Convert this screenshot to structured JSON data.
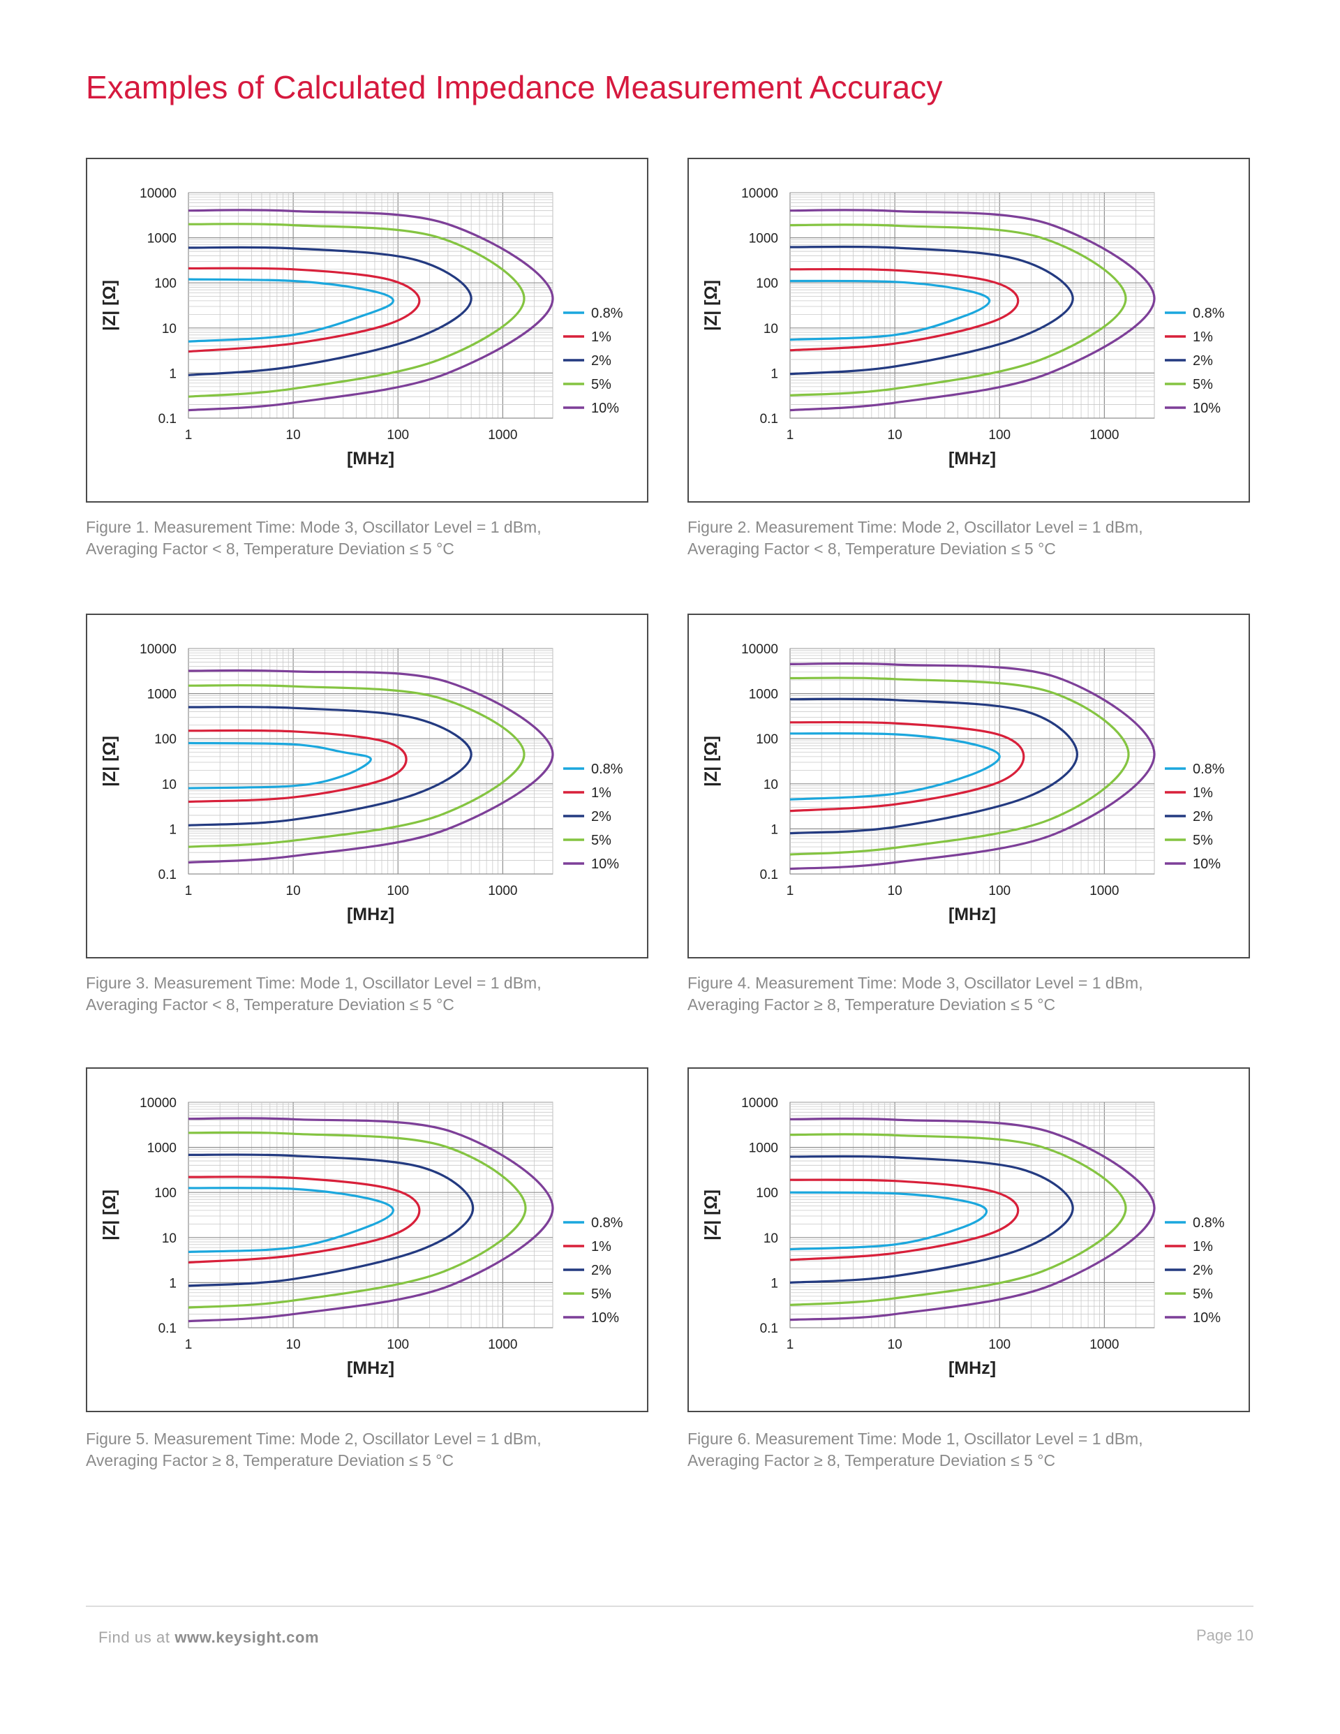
{
  "page_title": "Examples of Calculated Impedance Measurement Accuracy",
  "footer": {
    "find_us": "Find us at",
    "url": "www.keysight.com",
    "page": "Page 10"
  },
  "colors": {
    "title": "#d6193e",
    "0.8%": "#1ba7dd",
    "1%": "#d8203a",
    "2%": "#233a80",
    "5%": "#84c441",
    "10%": "#7d3f98"
  },
  "chart_data": [
    {
      "type": "line",
      "xlabel": "[MHz]",
      "ylabel": "|Z| [Ω]",
      "x_scale": "log",
      "y_scale": "log",
      "xlim": [
        1,
        3000
      ],
      "ylim": [
        0.1,
        10000
      ],
      "xticks": [
        "1",
        "10",
        "100",
        "1000"
      ],
      "yticks": [
        "10000",
        "1000",
        "100",
        "10",
        "1",
        "0.1"
      ],
      "grid": true,
      "legend": "right",
      "series": [
        {
          "name": "0.8%",
          "x": [
            1,
            10,
            50,
            90,
            50,
            10,
            1
          ],
          "y": [
            120,
            110,
            70,
            40,
            20,
            7,
            5
          ]
        },
        {
          "name": "1%",
          "x": [
            1,
            10,
            80,
            160,
            80,
            10,
            1
          ],
          "y": [
            210,
            200,
            120,
            40,
            12,
            4.5,
            3
          ]
        },
        {
          "name": "2%",
          "x": [
            1,
            10,
            150,
            500,
            150,
            10,
            1
          ],
          "y": [
            600,
            580,
            320,
            45,
            6,
            1.4,
            0.9
          ]
        },
        {
          "name": "5%",
          "x": [
            1,
            10,
            250,
            1600,
            250,
            10,
            1
          ],
          "y": [
            2000,
            1900,
            1000,
            45,
            2,
            0.45,
            0.3
          ]
        },
        {
          "name": "10%",
          "x": [
            1,
            10,
            300,
            3000,
            300,
            10,
            1
          ],
          "y": [
            4000,
            3900,
            2000,
            45,
            1,
            0.22,
            0.15
          ]
        }
      ],
      "caption": [
        "Figure 1. Measurement Time: Mode 3, Oscillator Level = 1 dBm,",
        "Averaging Factor < 8, Temperature Deviation ≤ 5 °C"
      ]
    },
    {
      "type": "line",
      "xlabel": "[MHz]",
      "ylabel": "|Z| [Ω]",
      "x_scale": "log",
      "y_scale": "log",
      "xlim": [
        1,
        3000
      ],
      "ylim": [
        0.1,
        10000
      ],
      "xticks": [
        "1",
        "10",
        "100",
        "1000"
      ],
      "yticks": [
        "10000",
        "1000",
        "100",
        "10",
        "1",
        "0.1"
      ],
      "grid": true,
      "legend": "right",
      "series": [
        {
          "name": "0.8%",
          "x": [
            1,
            10,
            45,
            80,
            45,
            10,
            1
          ],
          "y": [
            110,
            105,
            70,
            40,
            18,
            7,
            5.5
          ]
        },
        {
          "name": "1%",
          "x": [
            1,
            10,
            80,
            150,
            80,
            10,
            1
          ],
          "y": [
            200,
            190,
            110,
            40,
            13,
            4.5,
            3.2
          ]
        },
        {
          "name": "2%",
          "x": [
            1,
            10,
            150,
            500,
            150,
            10,
            1
          ],
          "y": [
            620,
            600,
            330,
            45,
            6,
            1.4,
            0.95
          ]
        },
        {
          "name": "5%",
          "x": [
            1,
            10,
            250,
            1600,
            250,
            10,
            1
          ],
          "y": [
            1900,
            1850,
            1000,
            45,
            2,
            0.45,
            0.32
          ]
        },
        {
          "name": "10%",
          "x": [
            1,
            10,
            300,
            3000,
            300,
            10,
            1
          ],
          "y": [
            4000,
            3900,
            2000,
            45,
            1,
            0.22,
            0.15
          ]
        }
      ],
      "caption": [
        "Figure 2. Measurement Time: Mode 2, Oscillator Level = 1 dBm,",
        "Averaging Factor < 8, Temperature Deviation ≤ 5 °C"
      ]
    },
    {
      "type": "line",
      "xlabel": "[MHz]",
      "ylabel": "|Z| [Ω]",
      "x_scale": "log",
      "y_scale": "log",
      "xlim": [
        1,
        3000
      ],
      "ylim": [
        0.1,
        10000
      ],
      "xticks": [
        "1",
        "10",
        "100",
        "1000"
      ],
      "yticks": [
        "10000",
        "1000",
        "100",
        "10",
        "1",
        "0.1"
      ],
      "grid": true,
      "legend": "right",
      "series": [
        {
          "name": "0.8%",
          "x": [
            1,
            10,
            30,
            55,
            30,
            10,
            1
          ],
          "y": [
            80,
            75,
            50,
            35,
            15,
            9,
            8
          ]
        },
        {
          "name": "1%",
          "x": [
            1,
            10,
            70,
            120,
            70,
            10,
            1
          ],
          "y": [
            150,
            145,
            90,
            35,
            12,
            5,
            4
          ]
        },
        {
          "name": "2%",
          "x": [
            1,
            10,
            150,
            500,
            150,
            10,
            1
          ],
          "y": [
            500,
            480,
            280,
            45,
            6,
            1.6,
            1.2
          ]
        },
        {
          "name": "5%",
          "x": [
            1,
            10,
            250,
            1600,
            250,
            10,
            1
          ],
          "y": [
            1500,
            1450,
            800,
            45,
            2,
            0.55,
            0.4
          ]
        },
        {
          "name": "10%",
          "x": [
            1,
            10,
            300,
            3000,
            300,
            10,
            1
          ],
          "y": [
            3200,
            3100,
            1800,
            45,
            1,
            0.25,
            0.18
          ]
        }
      ],
      "caption": [
        "Figure 3. Measurement Time: Mode 1, Oscillator Level = 1 dBm,",
        "Averaging Factor < 8, Temperature Deviation ≤ 5 °C"
      ]
    },
    {
      "type": "line",
      "xlabel": "[MHz]",
      "ylabel": "|Z| [Ω]",
      "x_scale": "log",
      "y_scale": "log",
      "xlim": [
        1,
        3000
      ],
      "ylim": [
        0.1,
        10000
      ],
      "xticks": [
        "1",
        "10",
        "100",
        "1000"
      ],
      "yticks": [
        "10000",
        "1000",
        "100",
        "10",
        "1",
        "0.1"
      ],
      "grid": true,
      "legend": "right",
      "series": [
        {
          "name": "0.8%",
          "x": [
            1,
            10,
            50,
            100,
            50,
            10,
            1
          ],
          "y": [
            130,
            125,
            80,
            40,
            15,
            6,
            4.5
          ]
        },
        {
          "name": "1%",
          "x": [
            1,
            10,
            90,
            170,
            90,
            10,
            1
          ],
          "y": [
            230,
            220,
            130,
            40,
            10,
            3.5,
            2.5
          ]
        },
        {
          "name": "2%",
          "x": [
            1,
            10,
            180,
            550,
            180,
            10,
            1
          ],
          "y": [
            750,
            720,
            400,
            45,
            5,
            1.1,
            0.8
          ]
        },
        {
          "name": "5%",
          "x": [
            1,
            10,
            300,
            1700,
            300,
            10,
            1
          ],
          "y": [
            2200,
            2100,
            1100,
            45,
            1.6,
            0.38,
            0.27
          ]
        },
        {
          "name": "10%",
          "x": [
            1,
            10,
            350,
            3000,
            350,
            10,
            1
          ],
          "y": [
            4500,
            4400,
            2300,
            45,
            0.8,
            0.18,
            0.13
          ]
        }
      ],
      "caption": [
        "Figure 4. Measurement Time: Mode 3, Oscillator Level = 1 dBm,",
        "Averaging Factor ≥ 8, Temperature Deviation ≤ 5 °C"
      ]
    },
    {
      "type": "line",
      "xlabel": "[MHz]",
      "ylabel": "|Z| [Ω]",
      "x_scale": "log",
      "y_scale": "log",
      "xlim": [
        1,
        3000
      ],
      "ylim": [
        0.1,
        10000
      ],
      "xticks": [
        "1",
        "10",
        "100",
        "1000"
      ],
      "yticks": [
        "10000",
        "1000",
        "100",
        "10",
        "1",
        "0.1"
      ],
      "grid": true,
      "legend": "right",
      "series": [
        {
          "name": "0.8%",
          "x": [
            1,
            10,
            50,
            90,
            50,
            10,
            1
          ],
          "y": [
            125,
            120,
            75,
            40,
            17,
            6,
            4.8
          ]
        },
        {
          "name": "1%",
          "x": [
            1,
            10,
            85,
            160,
            85,
            10,
            1
          ],
          "y": [
            220,
            210,
            120,
            40,
            11,
            4,
            2.8
          ]
        },
        {
          "name": "2%",
          "x": [
            1,
            10,
            170,
            520,
            170,
            10,
            1
          ],
          "y": [
            680,
            650,
            360,
            45,
            5.5,
            1.2,
            0.85
          ]
        },
        {
          "name": "5%",
          "x": [
            1,
            10,
            280,
            1650,
            280,
            10,
            1
          ],
          "y": [
            2100,
            2000,
            1050,
            45,
            1.8,
            0.4,
            0.28
          ]
        },
        {
          "name": "10%",
          "x": [
            1,
            10,
            330,
            3000,
            330,
            10,
            1
          ],
          "y": [
            4300,
            4200,
            2200,
            45,
            0.9,
            0.2,
            0.14
          ]
        }
      ],
      "caption": [
        "Figure 5. Measurement Time: Mode 2, Oscillator Level = 1 dBm,",
        "Averaging Factor ≥ 8, Temperature Deviation ≤ 5 °C"
      ]
    },
    {
      "type": "line",
      "xlabel": "[MHz]",
      "ylabel": "|Z| [Ω]",
      "x_scale": "log",
      "y_scale": "log",
      "xlim": [
        1,
        3000
      ],
      "ylim": [
        0.1,
        10000
      ],
      "xticks": [
        "1",
        "10",
        "100",
        "1000"
      ],
      "yticks": [
        "10000",
        "1000",
        "100",
        "10",
        "1",
        "0.1"
      ],
      "grid": true,
      "legend": "right",
      "series": [
        {
          "name": "0.8%",
          "x": [
            1,
            10,
            45,
            75,
            45,
            10,
            1
          ],
          "y": [
            100,
            95,
            65,
            38,
            17,
            7,
            5.5
          ]
        },
        {
          "name": "1%",
          "x": [
            1,
            10,
            80,
            150,
            80,
            10,
            1
          ],
          "y": [
            190,
            180,
            110,
            40,
            12,
            4.5,
            3.2
          ]
        },
        {
          "name": "2%",
          "x": [
            1,
            10,
            160,
            500,
            160,
            10,
            1
          ],
          "y": [
            620,
            600,
            330,
            45,
            5.5,
            1.4,
            1
          ]
        },
        {
          "name": "5%",
          "x": [
            1,
            10,
            260,
            1600,
            260,
            10,
            1
          ],
          "y": [
            1900,
            1850,
            1000,
            45,
            1.8,
            0.45,
            0.32
          ]
        },
        {
          "name": "10%",
          "x": [
            1,
            10,
            320,
            3000,
            320,
            10,
            1
          ],
          "y": [
            4200,
            4100,
            2100,
            45,
            0.9,
            0.2,
            0.15
          ]
        }
      ],
      "caption": [
        "Figure 6. Measurement Time: Mode 1, Oscillator Level = 1 dBm,",
        "Averaging Factor ≥ 8, Temperature Deviation ≤ 5 °C"
      ]
    }
  ]
}
